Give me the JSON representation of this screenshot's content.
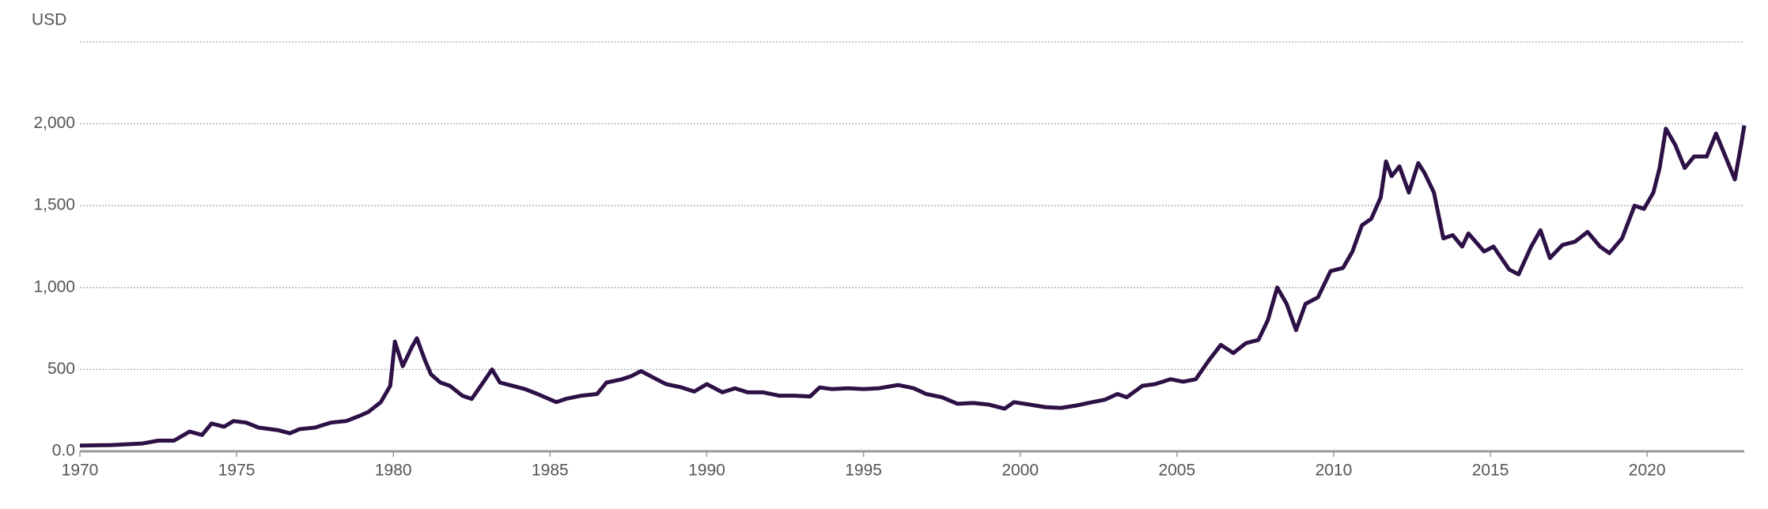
{
  "chart_data": {
    "type": "line",
    "y_axis_label": "USD",
    "x": [
      1970,
      1971,
      1972,
      1972.5,
      1973,
      1973.5,
      1973.9,
      1974.2,
      1974.6,
      1974.9,
      1975.3,
      1975.7,
      1976.3,
      1976.7,
      1977,
      1977.5,
      1978,
      1978.5,
      1978.9,
      1979.2,
      1979.6,
      1979.9,
      1980.05,
      1980.3,
      1980.6,
      1980.75,
      1981,
      1981.2,
      1981.5,
      1981.8,
      1982.2,
      1982.5,
      1982.9,
      1983.15,
      1983.4,
      1983.8,
      1984.2,
      1984.6,
      1985.2,
      1985.5,
      1986,
      1986.5,
      1986.8,
      1987.3,
      1987.6,
      1987.9,
      1988.3,
      1988.7,
      1989.2,
      1989.6,
      1990,
      1990.5,
      1990.9,
      1991.3,
      1991.8,
      1992.3,
      1992.8,
      1993.3,
      1993.6,
      1994,
      1994.5,
      1995,
      1995.5,
      1996.1,
      1996.6,
      1997,
      1997.5,
      1998,
      1998.5,
      1999,
      1999.5,
      1999.8,
      2000.3,
      2000.8,
      2001.3,
      2001.8,
      2002.3,
      2002.7,
      2003.1,
      2003.4,
      2003.9,
      2004.3,
      2004.8,
      2005.2,
      2005.6,
      2006,
      2006.4,
      2006.8,
      2007.2,
      2007.6,
      2007.9,
      2008.2,
      2008.5,
      2008.8,
      2009.1,
      2009.5,
      2009.9,
      2010.3,
      2010.6,
      2010.9,
      2011.2,
      2011.5,
      2011.67,
      2011.85,
      2012.1,
      2012.4,
      2012.7,
      2012.9,
      2013.2,
      2013.5,
      2013.8,
      2014.1,
      2014.3,
      2014.8,
      2015.1,
      2015.6,
      2015.9,
      2016.3,
      2016.6,
      2016.9,
      2017.3,
      2017.7,
      2018.1,
      2018.5,
      2018.8,
      2019.2,
      2019.6,
      2019.9,
      2020.2,
      2020.4,
      2020.6,
      2020.9,
      2021.2,
      2021.5,
      2021.9,
      2022.2,
      2022.5,
      2022.8,
      2023,
      2023.1
    ],
    "series": [
      {
        "color": "#2d1046",
        "values": [
          35,
          38,
          48,
          65,
          65,
          120,
          100,
          170,
          150,
          185,
          175,
          145,
          130,
          110,
          135,
          145,
          175,
          185,
          215,
          240,
          300,
          400,
          670,
          520,
          640,
          690,
          560,
          470,
          420,
          400,
          340,
          320,
          430,
          500,
          420,
          400,
          380,
          350,
          300,
          320,
          340,
          350,
          420,
          440,
          460,
          490,
          450,
          410,
          390,
          365,
          410,
          360,
          385,
          360,
          360,
          340,
          340,
          335,
          390,
          380,
          385,
          380,
          385,
          405,
          385,
          350,
          330,
          290,
          295,
          285,
          260,
          300,
          285,
          270,
          265,
          280,
          300,
          315,
          350,
          330,
          400,
          410,
          440,
          425,
          440,
          550,
          650,
          600,
          660,
          680,
          800,
          1000,
          900,
          740,
          900,
          940,
          1100,
          1120,
          1220,
          1380,
          1420,
          1550,
          1770,
          1680,
          1740,
          1580,
          1760,
          1700,
          1580,
          1300,
          1320,
          1250,
          1330,
          1220,
          1250,
          1110,
          1080,
          1250,
          1350,
          1180,
          1260,
          1280,
          1340,
          1250,
          1210,
          1300,
          1500,
          1480,
          1580,
          1730,
          1970,
          1870,
          1730,
          1800,
          1800,
          1940,
          1800,
          1660,
          1870,
          1990
        ]
      }
    ],
    "xlim": [
      1970,
      2023.1
    ],
    "xticks": [
      1970,
      1975,
      1980,
      1985,
      1990,
      1995,
      2000,
      2005,
      2010,
      2015,
      2020
    ],
    "ylim": [
      0,
      2500
    ],
    "yticks": [
      {
        "value": 0,
        "label": "0.0"
      },
      500,
      {
        "value": 1000,
        "label": "1,000"
      },
      {
        "value": 1500,
        "label": "1,500"
      },
      {
        "value": 2000,
        "label": "2,000"
      }
    ],
    "grid": true
  }
}
